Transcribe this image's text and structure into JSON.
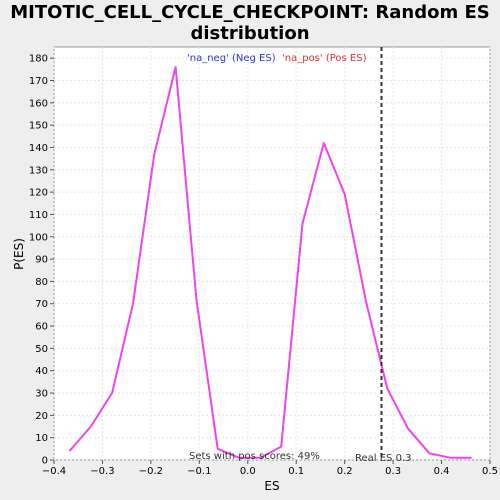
{
  "chart_data": {
    "type": "line",
    "title_line1": "MITOTIC_CELL_CYCLE_CHECKPOINT: Random ES",
    "title_line2": "distribution",
    "xlabel": "ES",
    "ylabel": "P(ES)",
    "xlim": [
      -0.4,
      0.5
    ],
    "ylim": [
      0,
      185
    ],
    "xticks": [
      -0.4,
      -0.3,
      -0.2,
      -0.1,
      0.0,
      0.1,
      0.2,
      0.3,
      0.4,
      0.5
    ],
    "xtick_labels": [
      "−0.4",
      "−0.3",
      "−0.2",
      "−0.1",
      "0.0",
      "0.1",
      "0.2",
      "0.3",
      "0.4",
      "0.5"
    ],
    "yticks": [
      0,
      10,
      20,
      30,
      40,
      50,
      60,
      70,
      80,
      90,
      100,
      110,
      120,
      130,
      140,
      150,
      160,
      170,
      180
    ],
    "grid": true,
    "legend": [
      {
        "label": "'na_neg' (Neg ES)",
        "color": "#3333cc"
      },
      {
        "label": "'na_pos' (Pos ES)",
        "color": "#dd3333"
      }
    ],
    "series": [
      {
        "color": "#ee44ee",
        "x": [
          -0.368,
          -0.324,
          -0.28,
          -0.237,
          -0.193,
          -0.149,
          -0.106,
          -0.062,
          -0.018,
          0.026,
          0.069,
          0.113,
          0.157,
          0.2,
          0.244,
          0.288,
          0.331,
          0.375,
          0.419,
          0.462
        ],
        "y": [
          4,
          15,
          30,
          70,
          137,
          176,
          72,
          5,
          1,
          1,
          6,
          106,
          142,
          119,
          71,
          32,
          14,
          3,
          1,
          1
        ]
      }
    ],
    "real_es": 0.276,
    "real_es_label": "Real ES 0.3",
    "annotation": "Sets with pos scores: 49%"
  }
}
